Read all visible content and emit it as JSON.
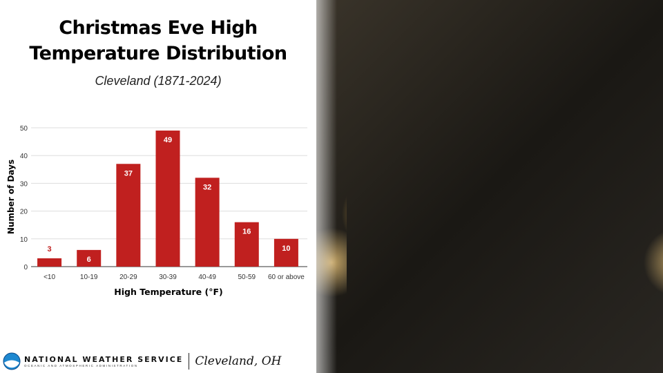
{
  "header": {
    "title_line1": "Christmas Eve High",
    "title_line2": "Temperature Distribution",
    "subtitle": "Cleveland (1871-2024)"
  },
  "footer": {
    "org": "NATIONAL WEATHER SERVICE",
    "sub": "OCEANIC AND ATMOSPHERIC ADMINISTRATION",
    "office": "Cleveland, OH"
  },
  "colors": {
    "bar": "#c0201f",
    "label_outside": "#c0201f",
    "label_inside": "#ffffff"
  },
  "chart_data": {
    "type": "bar",
    "title": "Christmas Eve High Temperature Distribution",
    "xlabel": "High Temperature (°F)",
    "ylabel": "Number of Days",
    "categories": [
      "<10",
      "10-19",
      "20-29",
      "30-39",
      "40-49",
      "50-59",
      "60 or above"
    ],
    "values": [
      3,
      6,
      37,
      49,
      32,
      16,
      10
    ],
    "ylim": [
      0,
      50
    ],
    "yticks": [
      0,
      10,
      20,
      30,
      40,
      50
    ],
    "grid": true
  }
}
